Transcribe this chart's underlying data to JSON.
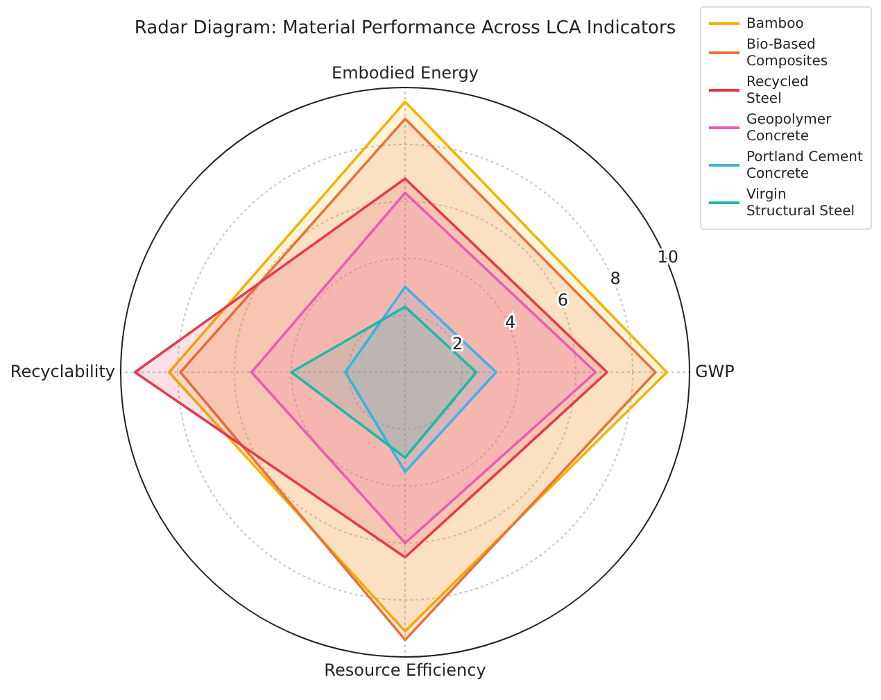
{
  "chart_data": {
    "type": "radar",
    "title": "Radar Diagram: Material Performance Across LCA Indicators",
    "categories": [
      "Embodied Energy",
      "GWP",
      "Resource Efficiency",
      "Recyclability"
    ],
    "ylim": [
      0,
      10
    ],
    "yticks": [
      2,
      4,
      6,
      8,
      10
    ],
    "grid": true,
    "legend": "top right",
    "series": [
      {
        "name": "Bamboo",
        "color": "#f5b300",
        "values": [
          9.5,
          9.2,
          9.1,
          8.3
        ]
      },
      {
        "name": "Bio-Based\nComposites",
        "color": "#e8743b",
        "values": [
          8.9,
          8.8,
          9.4,
          7.9
        ]
      },
      {
        "name": "Recycled\nSteel",
        "color": "#e63950",
        "values": [
          6.8,
          7.1,
          6.5,
          9.5
        ]
      },
      {
        "name": "Geopolymer\nConcrete",
        "color": "#e85cb8",
        "values": [
          6.3,
          6.7,
          6.0,
          5.4
        ]
      },
      {
        "name": "Portland Cement\nConcrete",
        "color": "#3cb4e6",
        "values": [
          3.0,
          3.2,
          3.5,
          2.1
        ]
      },
      {
        "name": "Virgin\nStructural Steel",
        "color": "#20b8a8",
        "values": [
          2.3,
          2.5,
          3.0,
          4.0
        ]
      }
    ]
  }
}
